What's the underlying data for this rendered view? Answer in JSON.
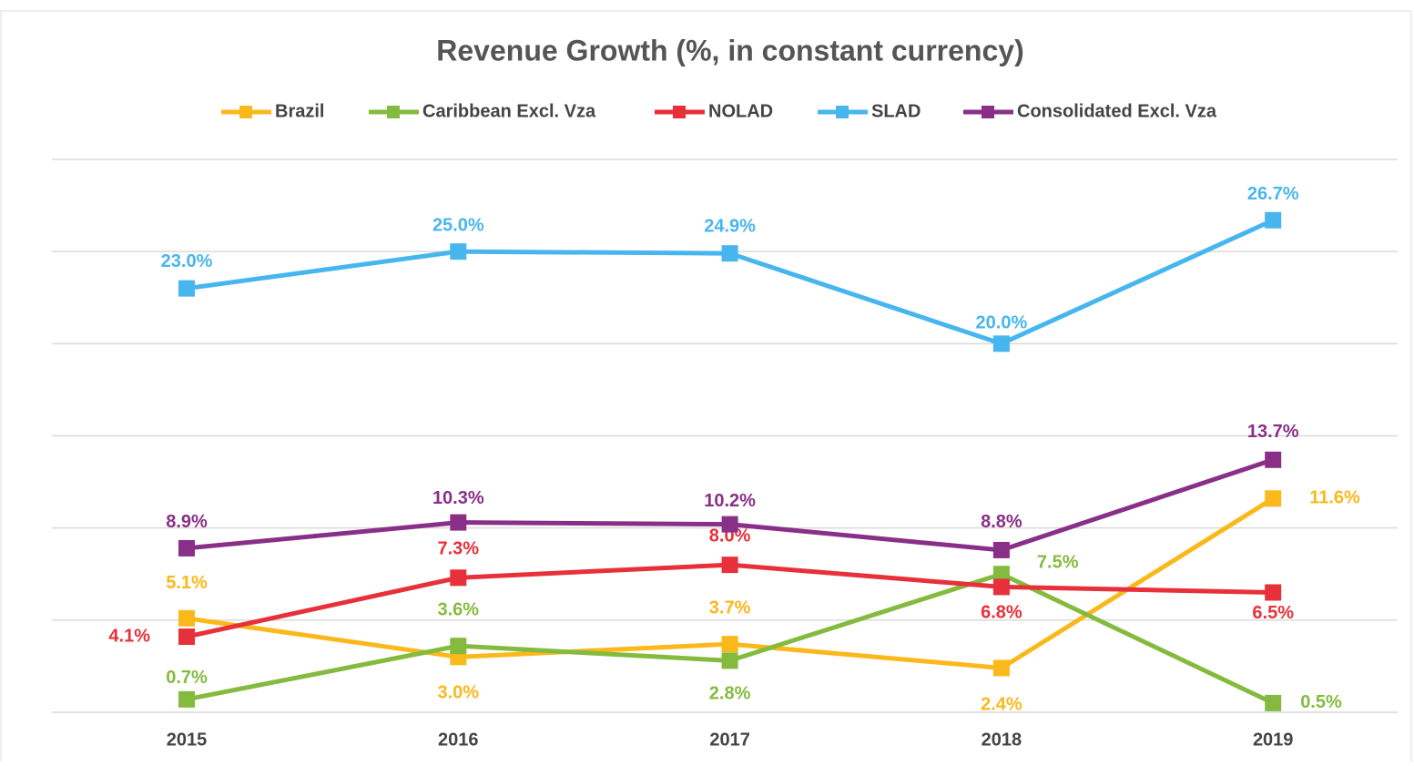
{
  "chart_data": {
    "type": "line",
    "title": "Revenue Growth (%, in constant currency)",
    "categories": [
      "2015",
      "2016",
      "2017",
      "2018",
      "2019"
    ],
    "ylim": [
      0,
      30
    ],
    "yticks": [
      0,
      5,
      10,
      15,
      20,
      25,
      30
    ],
    "grid": true,
    "legend": "top",
    "series": [
      {
        "name": "Brazil",
        "color": "#fbb81b",
        "values": [
          5.1,
          3.0,
          3.7,
          2.4,
          11.6
        ],
        "value_labels": [
          "5.1%",
          "3.0%",
          "3.7%",
          "2.4%",
          "11.6%"
        ]
      },
      {
        "name": "Caribbean Excl. Vza",
        "color": "#84bb3f",
        "values": [
          0.7,
          3.6,
          2.8,
          7.5,
          0.5
        ],
        "value_labels": [
          "0.7%",
          "3.6%",
          "2.8%",
          "7.5%",
          "0.5%"
        ]
      },
      {
        "name": "NOLAD",
        "color": "#e8303a",
        "values": [
          4.1,
          7.3,
          8.0,
          6.8,
          6.5
        ],
        "value_labels": [
          "4.1%",
          "7.3%",
          "8.0%",
          "6.8%",
          "6.5%"
        ]
      },
      {
        "name": "SLAD",
        "color": "#47b6ef",
        "values": [
          23.0,
          25.0,
          24.9,
          20.0,
          26.7
        ],
        "value_labels": [
          "23.0%",
          "25.0%",
          "24.9%",
          "20.0%",
          "26.7%"
        ]
      },
      {
        "name": "Consolidated Excl. Vza",
        "color": "#8a2f88",
        "values": [
          8.9,
          10.3,
          10.2,
          8.8,
          13.7
        ],
        "value_labels": [
          "8.9%",
          "10.3%",
          "10.2%",
          "8.8%",
          "13.7%"
        ]
      }
    ]
  }
}
